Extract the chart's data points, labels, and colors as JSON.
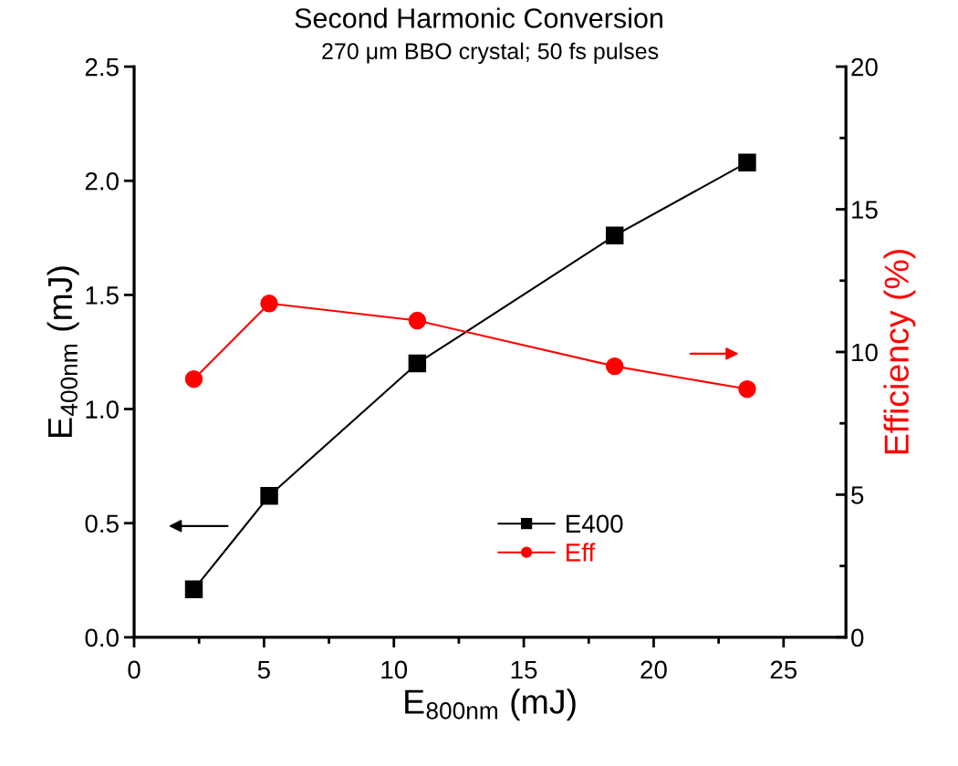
{
  "chart_data": {
    "type": "line",
    "title": "Second Harmonic Conversion",
    "subtitle": "270 μm BBO crystal; 50 fs pulses",
    "xlabel": "E$_{800nm}$ (mJ)",
    "ylabel": "E$_{400nm}$ (mJ)",
    "y2label": "Efficiency (%)",
    "x": [
      2.3,
      5.2,
      10.9,
      18.5,
      23.6
    ],
    "series": [
      {
        "name": "E400",
        "color": "#000000",
        "marker": "square",
        "values": [
          0.21,
          0.62,
          1.2,
          1.76,
          2.08
        ]
      },
      {
        "name": "Eff",
        "color": "#ff0000",
        "marker": "circle",
        "axis": "y2",
        "values": [
          9.05,
          11.7,
          11.1,
          9.5,
          8.7
        ]
      }
    ],
    "xlim": [
      0,
      27.4
    ],
    "xticks": [
      0,
      {
        "value": 2.5,
        "label": null
      },
      5,
      {
        "value": 7.5,
        "label": null
      },
      10,
      {
        "value": 12.5,
        "label": null
      },
      15,
      {
        "value": 17.5,
        "label": null
      },
      20,
      {
        "value": 22.5,
        "label": null
      },
      25
    ],
    "ylim": [
      0,
      2.5
    ],
    "yticks": [
      {
        "value": 0,
        "label": "0.0"
      },
      {
        "value": 0.5,
        "label": "0.5"
      },
      {
        "value": 1,
        "label": "1.0"
      },
      {
        "value": 1.5,
        "label": "1.5"
      },
      {
        "value": 2,
        "label": "2.0"
      },
      {
        "value": 2.5,
        "label": "2.5"
      }
    ],
    "y2lim": [
      0,
      20
    ],
    "y2ticks": [
      0,
      {
        "value": 2.5,
        "label": null
      },
      5,
      {
        "value": 7.5,
        "label": null
      },
      10,
      {
        "value": 12.5,
        "label": null
      },
      15,
      {
        "value": 17.5,
        "label": null
      },
      20
    ],
    "legend": "bottom",
    "line_style": "solid",
    "grid": false
  }
}
